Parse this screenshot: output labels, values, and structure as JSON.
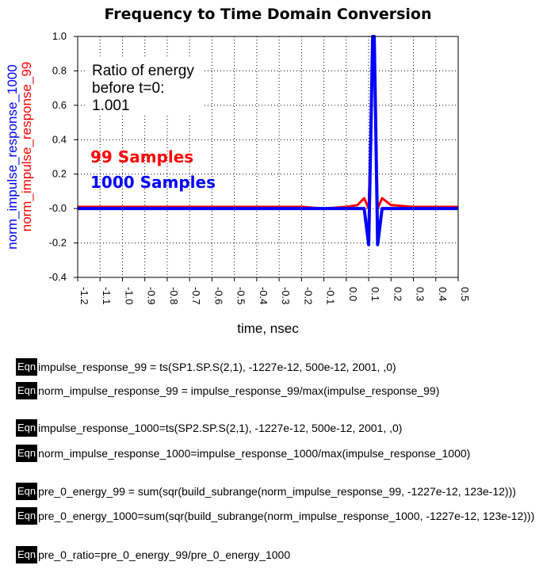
{
  "chart_data": {
    "type": "line",
    "title": "Frequency to Time Domain Conversion",
    "xlabel": "time, nsec",
    "ylabel_series": [
      "norm_impulse_response_1000",
      "norm_impulse_response_99"
    ],
    "xlim": [
      -1.2,
      0.5
    ],
    "ylim": [
      -0.4,
      1.0
    ],
    "x_ticks": [
      "-1.2",
      "-1.1",
      "-1.0",
      "-0.9",
      "-0.8",
      "-0.7",
      "-0.6",
      "-0.5",
      "-0.4",
      "-0.3",
      "-0.2",
      "-0.1",
      "0.0",
      "0.1",
      "0.2",
      "0.3",
      "0.4",
      "0.5"
    ],
    "y_ticks": [
      "1.0",
      "0.8",
      "0.6",
      "0.4",
      "0.2",
      "-0.0",
      "-0.2",
      "-0.4"
    ],
    "grid": true,
    "legend_placement": "top-left",
    "series": [
      {
        "name": "99 Samples",
        "color": "#ff0000",
        "points": [
          [
            -1.2,
            0.01
          ],
          [
            -1.0,
            0.01
          ],
          [
            -0.8,
            0.01
          ],
          [
            -0.6,
            0.01
          ],
          [
            -0.4,
            0.01
          ],
          [
            -0.2,
            0.01
          ],
          [
            -0.1,
            0.0
          ],
          [
            0.0,
            0.01
          ],
          [
            0.05,
            0.02
          ],
          [
            0.08,
            0.06
          ],
          [
            0.1,
            0.0
          ],
          [
            0.11,
            0.45
          ],
          [
            0.118,
            0.99
          ],
          [
            0.125,
            0.99
          ],
          [
            0.132,
            0.45
          ],
          [
            0.14,
            0.0
          ],
          [
            0.16,
            0.06
          ],
          [
            0.2,
            0.02
          ],
          [
            0.3,
            0.01
          ],
          [
            0.4,
            0.01
          ],
          [
            0.5,
            0.01
          ]
        ]
      },
      {
        "name": "1000 Samples",
        "color": "#0000ff",
        "points": [
          [
            -1.2,
            0.0
          ],
          [
            -1.0,
            0.0
          ],
          [
            -0.8,
            0.0
          ],
          [
            -0.6,
            0.0
          ],
          [
            -0.4,
            0.0
          ],
          [
            -0.2,
            0.0
          ],
          [
            -0.1,
            0.0
          ],
          [
            0.0,
            0.0
          ],
          [
            0.05,
            0.0
          ],
          [
            0.08,
            0.0
          ],
          [
            0.1,
            -0.21
          ],
          [
            0.11,
            0.45
          ],
          [
            0.118,
            1.0
          ],
          [
            0.125,
            1.0
          ],
          [
            0.132,
            0.45
          ],
          [
            0.14,
            -0.21
          ],
          [
            0.16,
            0.0
          ],
          [
            0.2,
            0.0
          ],
          [
            0.3,
            0.0
          ],
          [
            0.4,
            0.0
          ],
          [
            0.5,
            0.0
          ]
        ]
      }
    ],
    "annotations": {
      "ratio_lines": [
        "Ratio of energy",
        "before t=0:",
        "1.001"
      ],
      "legend_99": "99 Samples",
      "legend_1000": "1000 Samples"
    }
  },
  "equations": [
    {
      "tag": "Eqn",
      "text": "impulse_response_99 = ts(SP1.SP.S(2,1), -1227e-12, 500e-12, 2001, ,0)"
    },
    {
      "tag": "Eqn",
      "text": "norm_impulse_response_99 = impulse_response_99/max(impulse_response_99)"
    },
    {
      "tag": "Eqn",
      "text": "impulse_response_1000=ts(SP2.SP.S(2,1), -1227e-12, 500e-12, 2001, ,0)"
    },
    {
      "tag": "Eqn",
      "text": "norm_impulse_response_1000=impulse_response_1000/max(impulse_response_1000)"
    },
    {
      "tag": "Eqn",
      "text": "pre_0_energy_99 = sum(sqr(build_subrange(norm_impulse_response_99, -1227e-12, 123e-12)))"
    },
    {
      "tag": "Eqn",
      "text": "pre_0_energy_1000=sum(sqr(build_subrange(norm_impulse_response_1000, -1227e-12, 123e-12)))"
    },
    {
      "tag": "Eqn",
      "text": "pre_0_ratio=pre_0_energy_99/pre_0_energy_1000"
    }
  ]
}
